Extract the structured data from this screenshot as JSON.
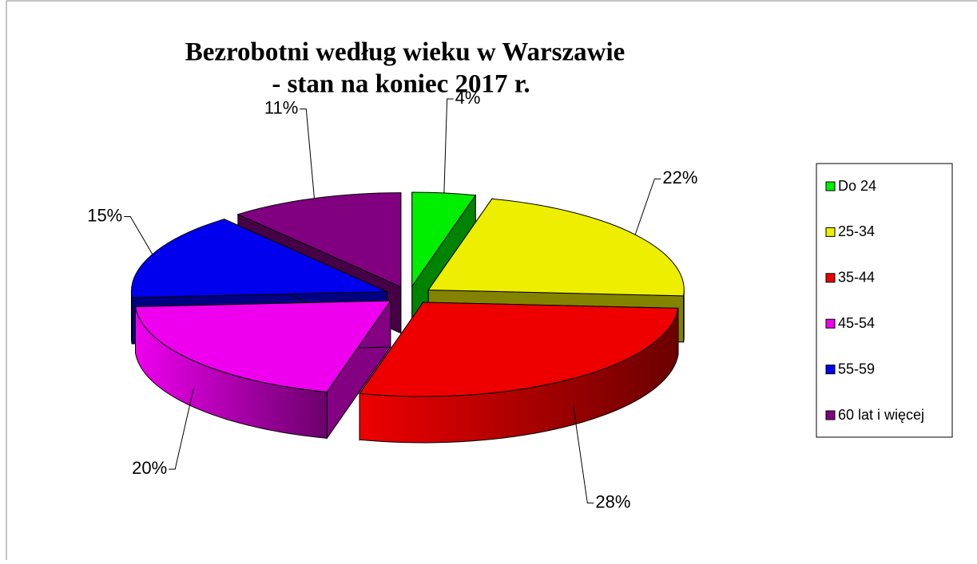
{
  "chart_data": {
    "type": "pie",
    "title": [
      "Bezrobotni według wieku w Warszawie",
      "- stan na koniec 2017 r."
    ],
    "categories": [
      "Do 24",
      "25-34",
      "35-44",
      "45-54",
      "55-59",
      "60 lat i więcej"
    ],
    "values": [
      4,
      22,
      28,
      20,
      15,
      11
    ],
    "value_labels": [
      "4%",
      "22%",
      "28%",
      "20%",
      "15%",
      "11%"
    ],
    "colors": [
      "#00ee00",
      "#eeee00",
      "#ee0000",
      "#ee00ee",
      "#0000ee",
      "#800080"
    ],
    "legend": "right"
  }
}
